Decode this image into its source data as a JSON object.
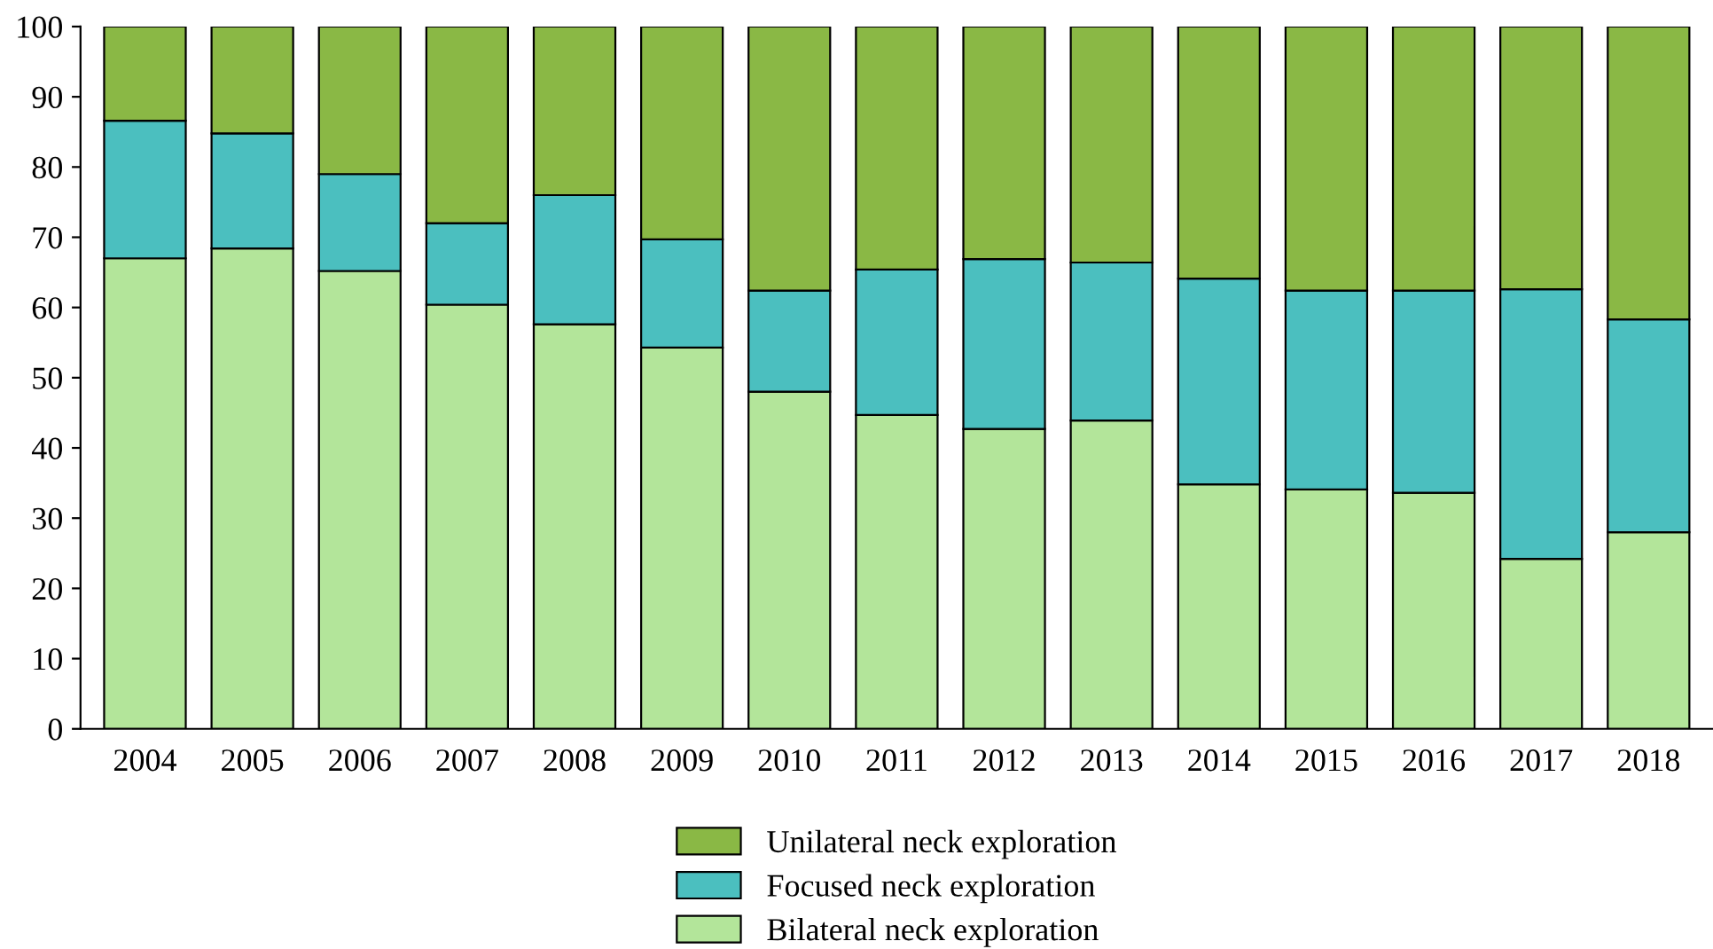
{
  "chart_data": {
    "type": "bar",
    "stacked": true,
    "categories": [
      "2004",
      "2005",
      "2006",
      "2007",
      "2008",
      "2009",
      "2010",
      "2011",
      "2012",
      "2013",
      "2014",
      "2015",
      "2016",
      "2017",
      "2018"
    ],
    "series": [
      {
        "name": "Bilateral neck exploration",
        "color": "#b3e59a",
        "values": [
          67,
          68.4,
          65.2,
          60.4,
          57.6,
          54.3,
          48,
          44.7,
          42.7,
          43.9,
          34.8,
          34.1,
          33.6,
          24.2,
          28
        ]
      },
      {
        "name": "Focused neck exploration",
        "color": "#4bbfbf",
        "values": [
          19.6,
          16.4,
          13.8,
          11.6,
          18.4,
          15.4,
          14.4,
          20.7,
          24.2,
          22.5,
          29.3,
          28.3,
          28.8,
          38.4,
          30.3
        ]
      },
      {
        "name": "Unilateral neck exploration",
        "color": "#8ab845",
        "values": [
          13.4,
          15.2,
          21,
          28,
          24,
          30.3,
          37.6,
          34.6,
          33.1,
          33.6,
          35.9,
          37.6,
          37.6,
          37.4,
          41.7
        ]
      }
    ],
    "ylim": [
      0,
      100
    ],
    "yticks": [
      0,
      10,
      20,
      30,
      40,
      50,
      60,
      70,
      80,
      90,
      100
    ],
    "grid": false,
    "legend": "bottom"
  }
}
